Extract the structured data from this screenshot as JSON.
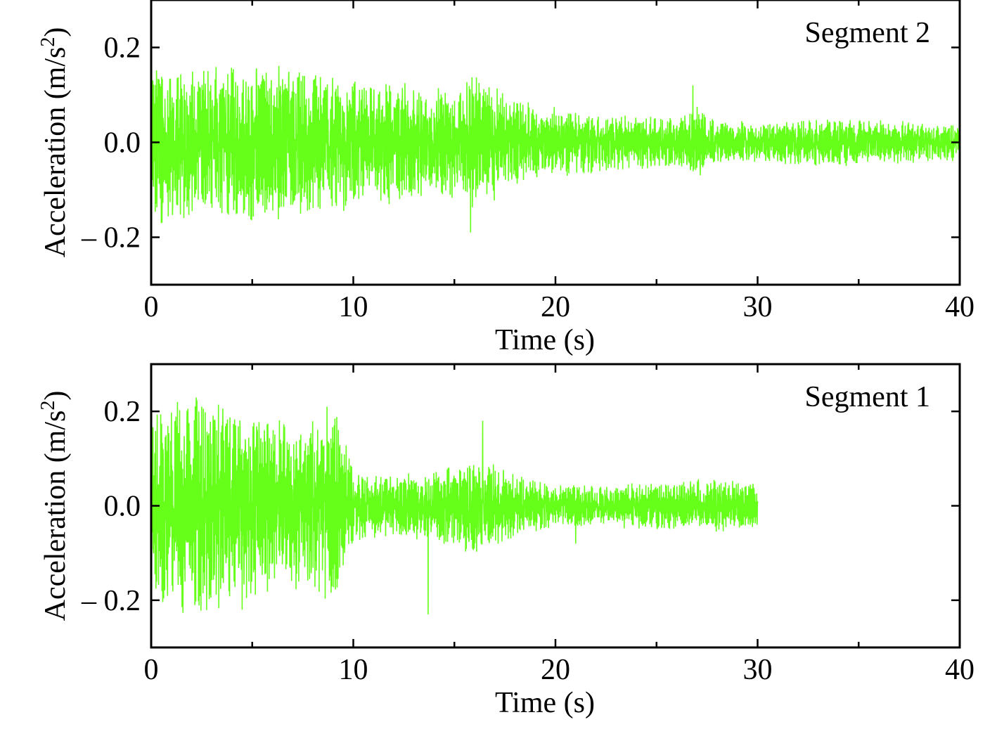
{
  "figure": {
    "signal_color": "#66ff1a",
    "axis_color": "#000000"
  },
  "chart_data": [
    {
      "type": "line",
      "panel_label": "Segment 2",
      "xlabel": "Time (s)",
      "ylabel_main": "Acceleration (m/s",
      "ylabel_sup": "2",
      "ylabel_close": ")",
      "xlim": [
        0,
        40
      ],
      "ylim": [
        -0.3,
        0.3
      ],
      "xticks": [
        0,
        10,
        20,
        30,
        40
      ],
      "xtick_labels": [
        "0",
        "10",
        "20",
        "30",
        "40"
      ],
      "yticks": [
        0.2,
        0.0,
        -0.2
      ],
      "ytick_labels": [
        "0.2",
        "0.0",
        "– 0.2"
      ],
      "grid": false,
      "series_duration_s": 40,
      "envelope": {
        "t": [
          0,
          2,
          5,
          8,
          10,
          12,
          15,
          16,
          18,
          20,
          22,
          24,
          26,
          27,
          28,
          30,
          34,
          40
        ],
        "amplitude": [
          0.14,
          0.12,
          0.13,
          0.12,
          0.11,
          0.1,
          0.09,
          0.12,
          0.07,
          0.06,
          0.05,
          0.045,
          0.04,
          0.06,
          0.035,
          0.035,
          0.04,
          0.03
        ]
      },
      "peaks": [
        {
          "t": 0.5,
          "value": -0.17
        },
        {
          "t": 5.2,
          "value": 0.15
        },
        {
          "t": 15.8,
          "value": -0.19
        },
        {
          "t": 26.8,
          "value": 0.12
        }
      ]
    },
    {
      "type": "line",
      "panel_label": "Segment 1",
      "xlabel": "Time (s)",
      "ylabel_main": "Acceleration (m/s",
      "ylabel_sup": "2",
      "ylabel_close": ")",
      "xlim": [
        0,
        40
      ],
      "ylim": [
        -0.3,
        0.3
      ],
      "xticks": [
        0,
        10,
        20,
        30,
        40
      ],
      "xtick_labels": [
        "0",
        "10",
        "20",
        "30",
        "40"
      ],
      "yticks": [
        0.2,
        0.0,
        -0.2
      ],
      "ytick_labels": [
        "0.2",
        "0.0",
        "– 0.2"
      ],
      "grid": false,
      "series_duration_s": 30,
      "envelope": {
        "t": [
          0,
          2,
          5,
          8,
          9,
          10,
          12,
          14,
          16,
          17,
          18,
          20,
          22,
          25,
          28,
          30
        ],
        "amplitude": [
          0.15,
          0.19,
          0.15,
          0.14,
          0.17,
          0.06,
          0.05,
          0.06,
          0.08,
          0.07,
          0.05,
          0.035,
          0.035,
          0.04,
          0.045,
          0.04
        ]
      },
      "peaks": [
        {
          "t": 1.3,
          "value": 0.22
        },
        {
          "t": 4.5,
          "value": -0.22
        },
        {
          "t": 8.7,
          "value": 0.21
        },
        {
          "t": 13.7,
          "value": -0.23
        },
        {
          "t": 16.4,
          "value": 0.18
        },
        {
          "t": 21.0,
          "value": -0.08
        }
      ]
    }
  ]
}
